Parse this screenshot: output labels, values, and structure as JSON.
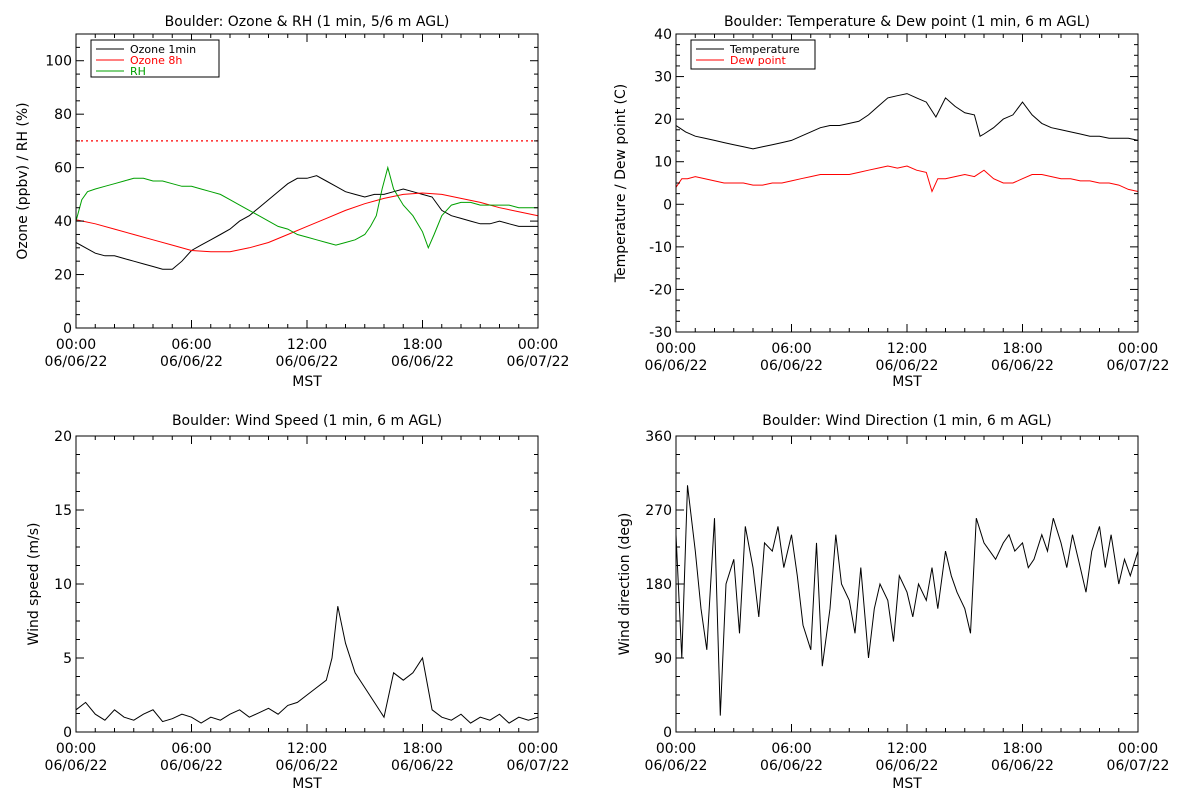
{
  "chart_data": [
    {
      "type": "line",
      "title": "Boulder: Ozone & RH (1 min, 5/6 m AGL)",
      "ylabel": "Ozone (ppbv) / RH (%)",
      "xlabel": "MST",
      "xlim": [
        0,
        24
      ],
      "ylim": [
        0,
        110
      ],
      "yticks": [
        0,
        20,
        40,
        60,
        80,
        100
      ],
      "xtick_labels": [
        [
          "00:00",
          "06/06/22"
        ],
        [
          "06:00",
          "06/06/22"
        ],
        [
          "12:00",
          "06/06/22"
        ],
        [
          "18:00",
          "06/06/22"
        ],
        [
          "00:00",
          "06/07/22"
        ]
      ],
      "legend": {
        "placement": "top-left",
        "entries": [
          "Ozone 1min",
          "Ozone 8h",
          "RH"
        ]
      },
      "hlines": [
        {
          "y": 70,
          "color": "#ff0000",
          "style": "dotted"
        }
      ],
      "series": [
        {
          "name": "Ozone 1min",
          "color": "#000000",
          "x": [
            0,
            0.5,
            1,
            1.5,
            2,
            2.5,
            3,
            3.5,
            4,
            4.5,
            5,
            5.5,
            6,
            6.5,
            7,
            7.5,
            8,
            8.5,
            9,
            9.5,
            10,
            10.5,
            11,
            11.5,
            12,
            12.5,
            13,
            13.5,
            14,
            14.5,
            15,
            15.5,
            16,
            16.5,
            17,
            17.5,
            18,
            18.5,
            19,
            19.5,
            20,
            20.5,
            21,
            21.5,
            22,
            22.5,
            23,
            23.5,
            24
          ],
          "y": [
            32,
            30,
            28,
            27,
            27,
            26,
            25,
            24,
            23,
            22,
            22,
            25,
            29,
            31,
            33,
            35,
            37,
            40,
            42,
            45,
            48,
            51,
            54,
            56,
            56,
            57,
            55,
            53,
            51,
            50,
            49,
            50,
            50,
            51,
            52,
            51,
            50,
            49,
            44,
            42,
            41,
            40,
            39,
            39,
            40,
            39,
            38,
            38,
            38
          ]
        },
        {
          "name": "Ozone 8h",
          "color": "#ff0000",
          "x": [
            0,
            1,
            2,
            3,
            4,
            5,
            6,
            7,
            8,
            9,
            10,
            11,
            12,
            13,
            14,
            15,
            16,
            17,
            18,
            19,
            20,
            21,
            22,
            23,
            24
          ],
          "y": [
            40.5,
            39,
            37,
            35,
            33,
            31,
            29,
            28.5,
            28.5,
            30,
            32,
            35,
            38,
            41,
            44,
            46.5,
            48.5,
            50,
            50.5,
            50,
            48.5,
            47,
            45,
            43.5,
            42
          ]
        },
        {
          "name": "RH",
          "color": "#00a000",
          "x": [
            0,
            0.3,
            0.6,
            1,
            1.5,
            2,
            2.5,
            3,
            3.5,
            4,
            4.5,
            5,
            5.5,
            6,
            6.5,
            7,
            7.5,
            8,
            8.5,
            9,
            9.5,
            10,
            10.5,
            11,
            11.5,
            12,
            12.5,
            13,
            13.5,
            14,
            14.5,
            15,
            15.3,
            15.6,
            15.9,
            16.2,
            16.5,
            17,
            17.5,
            18,
            18.3,
            18.6,
            19,
            19.5,
            20,
            20.5,
            21,
            21.5,
            22,
            22.5,
            23,
            23.5,
            24
          ],
          "y": [
            40,
            48,
            51,
            52,
            53,
            54,
            55,
            56,
            56,
            55,
            55,
            54,
            53,
            53,
            52,
            51,
            50,
            48,
            46,
            44,
            42,
            40,
            38,
            37,
            35,
            34,
            33,
            32,
            31,
            32,
            33,
            35,
            38,
            42,
            52,
            60,
            52,
            46,
            42,
            36,
            30,
            35,
            42,
            46,
            47,
            47,
            46,
            46,
            46,
            46,
            45,
            45,
            45
          ]
        }
      ]
    },
    {
      "type": "line",
      "title": "Boulder: Temperature & Dew point (1 min, 6 m AGL)",
      "ylabel": "Temperature / Dew point (C)",
      "xlabel": "MST",
      "xlim": [
        0,
        24
      ],
      "ylim": [
        -30,
        40
      ],
      "yticks": [
        -30,
        -20,
        -10,
        0,
        10,
        20,
        30,
        40
      ],
      "xtick_labels": [
        [
          "00:00",
          "06/06/22"
        ],
        [
          "06:00",
          "06/06/22"
        ],
        [
          "12:00",
          "06/06/22"
        ],
        [
          "18:00",
          "06/06/22"
        ],
        [
          "00:00",
          "06/07/22"
        ]
      ],
      "legend": {
        "placement": "top-left",
        "entries": [
          "Temperature",
          "Dew point"
        ]
      },
      "series": [
        {
          "name": "Temperature",
          "color": "#000000",
          "x": [
            0,
            0.5,
            1,
            1.5,
            2,
            2.5,
            3,
            3.5,
            4,
            4.5,
            5,
            5.5,
            6,
            6.5,
            7,
            7.5,
            8,
            8.5,
            9,
            9.5,
            10,
            10.5,
            11,
            11.5,
            12,
            12.5,
            13,
            13.5,
            14,
            14.5,
            15,
            15.5,
            15.8,
            16,
            16.5,
            17,
            17.5,
            18,
            18.5,
            19,
            19.5,
            20,
            20.5,
            21,
            21.5,
            22,
            22.5,
            23,
            23.5,
            24
          ],
          "y": [
            18.5,
            17,
            16,
            15.5,
            15,
            14.5,
            14,
            13.5,
            13,
            13.5,
            14,
            14.5,
            15,
            16,
            17,
            18,
            18.5,
            18.5,
            19,
            19.5,
            21,
            23,
            25,
            25.5,
            26,
            25,
            24,
            20.5,
            25,
            23,
            21.5,
            21,
            16,
            16.5,
            18,
            20,
            21,
            24,
            21,
            19,
            18,
            17.5,
            17,
            16.5,
            16,
            16,
            15.5,
            15.5,
            15.5,
            15
          ]
        },
        {
          "name": "Dew point",
          "color": "#ff0000",
          "x": [
            0,
            0.3,
            0.6,
            1,
            1.5,
            2,
            2.5,
            3,
            3.5,
            4,
            4.5,
            5,
            5.5,
            6,
            6.5,
            7,
            7.5,
            8,
            8.5,
            9,
            9.5,
            10,
            10.5,
            11,
            11.5,
            12,
            12.5,
            13,
            13.3,
            13.6,
            14,
            14.5,
            15,
            15.5,
            16,
            16.5,
            17,
            17.5,
            18,
            18.5,
            19,
            19.5,
            20,
            20.5,
            21,
            21.5,
            22,
            22.5,
            23,
            23.5,
            24
          ],
          "y": [
            4,
            6,
            6,
            6.5,
            6,
            5.5,
            5,
            5,
            5,
            4.5,
            4.5,
            5,
            5,
            5.5,
            6,
            6.5,
            7,
            7,
            7,
            7,
            7.5,
            8,
            8.5,
            9,
            8.5,
            9,
            8,
            7.5,
            3,
            6,
            6,
            6.5,
            7,
            6.5,
            8,
            6,
            5,
            5,
            6,
            7,
            7,
            6.5,
            6,
            6,
            5.5,
            5.5,
            5,
            5,
            4.5,
            3.5,
            3
          ]
        }
      ]
    },
    {
      "type": "line",
      "title": "Boulder: Wind Speed (1 min, 6 m AGL)",
      "ylabel": "Wind speed (m/s)",
      "xlabel": "MST",
      "xlim": [
        0,
        24
      ],
      "ylim": [
        0,
        20
      ],
      "yticks": [
        0,
        5,
        10,
        15,
        20
      ],
      "xtick_labels": [
        [
          "00:00",
          "06/06/22"
        ],
        [
          "06:00",
          "06/06/22"
        ],
        [
          "12:00",
          "06/06/22"
        ],
        [
          "18:00",
          "06/06/22"
        ],
        [
          "00:00",
          "06/07/22"
        ]
      ],
      "series": [
        {
          "name": "",
          "color": "#000000",
          "x": [
            0,
            0.5,
            1,
            1.5,
            2,
            2.5,
            3,
            3.5,
            4,
            4.5,
            5,
            5.5,
            6,
            6.5,
            7,
            7.5,
            8,
            8.5,
            9,
            9.5,
            10,
            10.5,
            11,
            11.5,
            12,
            12.5,
            13,
            13.3,
            13.6,
            14,
            14.5,
            15,
            15.5,
            16,
            16.5,
            17,
            17.5,
            18,
            18.5,
            19,
            19.5,
            20,
            20.5,
            21,
            21.5,
            22,
            22.5,
            23,
            23.5,
            24
          ],
          "y": [
            1.5,
            2,
            1.2,
            0.8,
            1.5,
            1,
            0.8,
            1.2,
            1.5,
            0.7,
            0.9,
            1.2,
            1,
            0.6,
            1,
            0.8,
            1.2,
            1.5,
            1,
            1.3,
            1.6,
            1.2,
            1.8,
            2,
            2.5,
            3,
            3.5,
            5,
            8.5,
            6,
            4,
            3,
            2,
            1,
            4,
            3.5,
            4,
            5,
            1.5,
            1,
            0.8,
            1.2,
            0.6,
            1,
            0.8,
            1.2,
            0.6,
            1,
            0.8,
            1
          ]
        }
      ]
    },
    {
      "type": "line",
      "title": "Boulder: Wind Direction (1 min, 6 m AGL)",
      "ylabel": "Wind direction (deg)",
      "xlabel": "MST",
      "xlim": [
        0,
        24
      ],
      "ylim": [
        0,
        360
      ],
      "yticks": [
        0,
        90,
        180,
        270,
        360
      ],
      "xtick_labels": [
        [
          "00:00",
          "06/06/22"
        ],
        [
          "06:00",
          "06/06/22"
        ],
        [
          "12:00",
          "06/06/22"
        ],
        [
          "18:00",
          "06/06/22"
        ],
        [
          "00:00",
          "06/07/22"
        ]
      ],
      "series": [
        {
          "name": "",
          "color": "#000000",
          "x": [
            0,
            0.3,
            0.6,
            1,
            1.3,
            1.6,
            2,
            2.3,
            2.6,
            3,
            3.3,
            3.6,
            4,
            4.3,
            4.6,
            5,
            5.3,
            5.6,
            6,
            6.3,
            6.6,
            7,
            7.3,
            7.6,
            8,
            8.3,
            8.6,
            9,
            9.3,
            9.6,
            10,
            10.3,
            10.6,
            11,
            11.3,
            11.6,
            12,
            12.3,
            12.6,
            13,
            13.3,
            13.6,
            14,
            14.3,
            14.6,
            15,
            15.3,
            15.6,
            16,
            16.3,
            16.6,
            17,
            17.3,
            17.6,
            18,
            18.3,
            18.6,
            19,
            19.3,
            19.6,
            20,
            20.3,
            20.6,
            21,
            21.3,
            21.6,
            22,
            22.3,
            22.6,
            23,
            23.3,
            23.6,
            24
          ],
          "y": [
            240,
            90,
            300,
            220,
            150,
            100,
            260,
            20,
            180,
            210,
            120,
            250,
            200,
            140,
            230,
            220,
            250,
            200,
            240,
            190,
            130,
            100,
            230,
            80,
            150,
            240,
            180,
            160,
            120,
            200,
            90,
            150,
            180,
            160,
            110,
            190,
            170,
            140,
            180,
            160,
            200,
            150,
            220,
            190,
            170,
            150,
            120,
            260,
            230,
            220,
            210,
            230,
            240,
            220,
            230,
            200,
            210,
            240,
            220,
            260,
            230,
            200,
            240,
            200,
            170,
            220,
            250,
            200,
            240,
            180,
            210,
            190,
            220
          ]
        }
      ]
    }
  ]
}
